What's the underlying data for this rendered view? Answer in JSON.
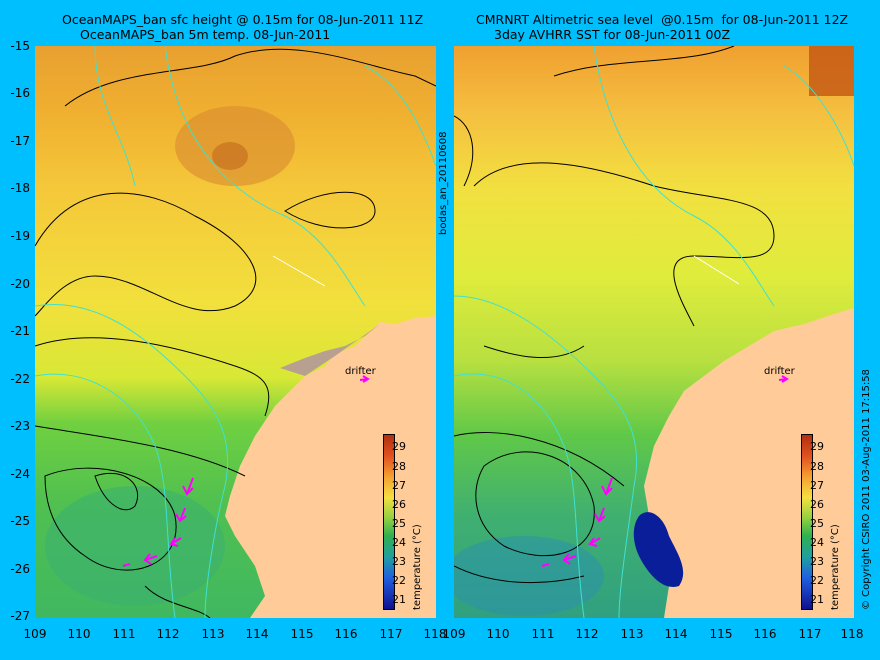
{
  "left_panel": {
    "title_line1": "OceanMAPS_ban sfc height @ 0.15m for 08-Jun-2011 11Z",
    "title_line2": "OceanMAPS_ban 5m temp. 08-Jun-2011"
  },
  "right_panel": {
    "title_line1": "CMRNRT Altimetric sea level  @0.15m  for 08-Jun-2011 12Z",
    "title_line2": "3day AVHRR SST for 08-Jun-2011 00Z"
  },
  "side_label": "bodas_an_20110608",
  "copyright": "© Copyright CSIRO 2011   03-Aug-2011 17:15:58",
  "drifter_label": "drifter",
  "colorbar": {
    "title": "temperature (°C)",
    "ticks": [
      "29",
      "28",
      "27",
      "26",
      "25",
      "24",
      "23",
      "22",
      "21"
    ]
  },
  "lat_ticks": [
    "-15",
    "-16",
    "-17",
    "-18",
    "-19",
    "-20",
    "-21",
    "-22",
    "-23",
    "-24",
    "-25",
    "-26",
    "-27"
  ],
  "lon_ticks_left": [
    "109",
    "110",
    "111",
    "112",
    "113",
    "114",
    "115",
    "116",
    "117",
    "118"
  ],
  "lon_ticks_right": [
    "109",
    "110",
    "111",
    "112",
    "113",
    "114",
    "115",
    "116",
    "117",
    "118"
  ],
  "colors": {
    "background": "#00BFFF",
    "land": "#FFCC99",
    "contour": "#000000",
    "isobath": "#40E0D0",
    "drifter_arrow": "#FF00FF"
  }
}
